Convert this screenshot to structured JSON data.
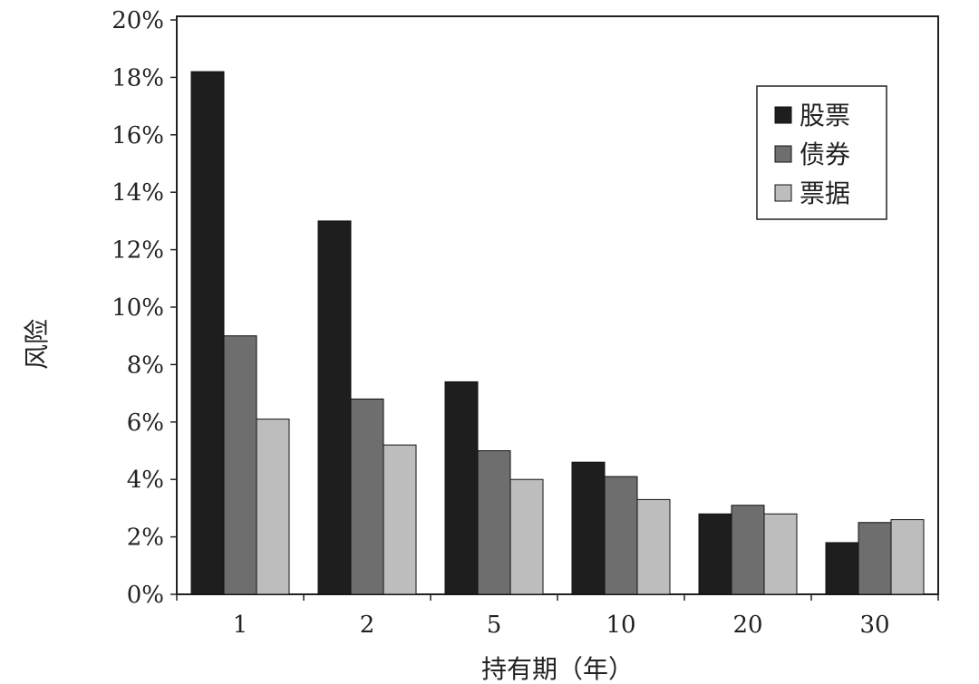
{
  "chart_data": {
    "type": "bar",
    "title": "",
    "xlabel": "持有期（年）",
    "ylabel": "风险",
    "categories": [
      "1",
      "2",
      "5",
      "10",
      "20",
      "30"
    ],
    "series": [
      {
        "name": "股票",
        "color": "#1e1e1e",
        "values": [
          18.2,
          13.0,
          7.4,
          4.6,
          2.8,
          1.8
        ]
      },
      {
        "name": "债券",
        "color": "#6e6e6e",
        "values": [
          9.0,
          6.8,
          5.0,
          4.1,
          3.1,
          2.5
        ]
      },
      {
        "name": "票据",
        "color": "#bdbdbd",
        "values": [
          6.1,
          5.2,
          4.0,
          3.3,
          2.8,
          2.6
        ]
      }
    ],
    "ylim": [
      0,
      20
    ],
    "yticks": [
      "0%",
      "2%",
      "4%",
      "6%",
      "8%",
      "10%",
      "12%",
      "14%",
      "16%",
      "18%",
      "20%"
    ],
    "grid": false,
    "legend_position": "top-right"
  }
}
